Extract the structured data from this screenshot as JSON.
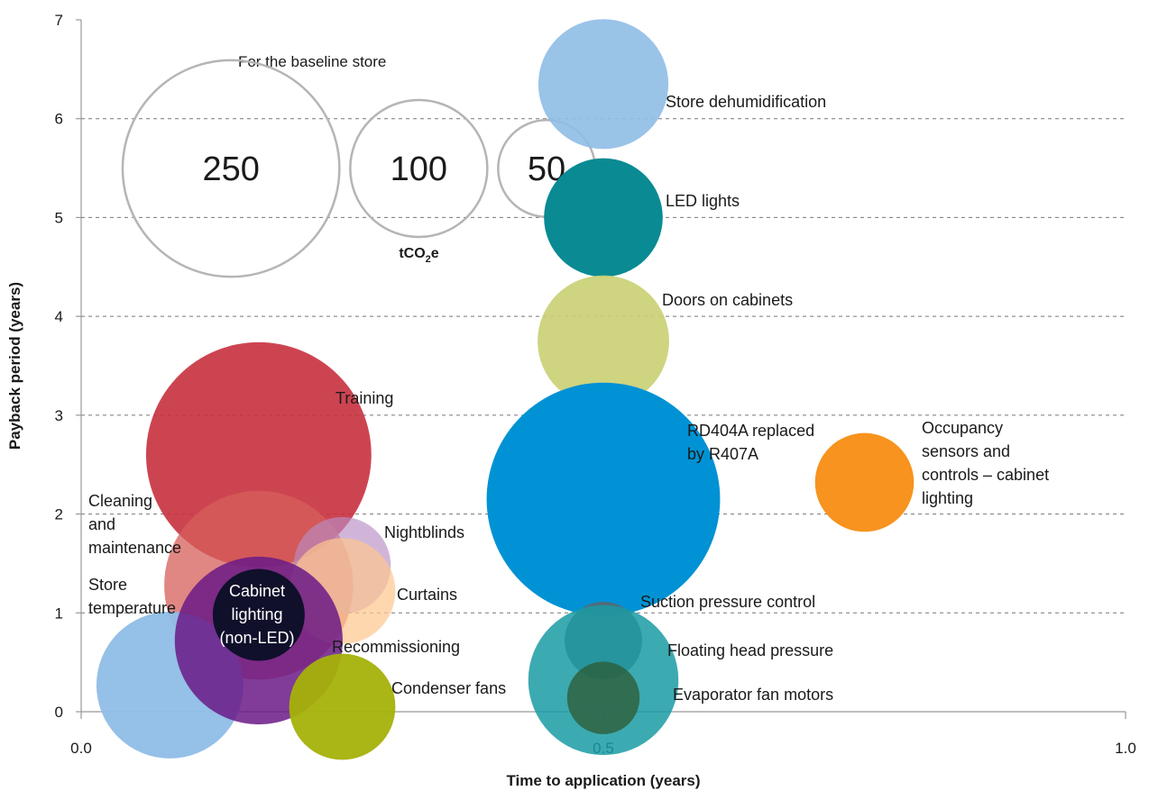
{
  "chart_data": {
    "type": "bubble",
    "xlabel": "Time to application (years)",
    "ylabel": "Payback period (years)",
    "xlim": [
      0,
      1
    ],
    "ylim": [
      0,
      7
    ],
    "x_ticks": [
      "0.0",
      "0.5",
      "1.0"
    ],
    "y_ticks": [
      "0",
      "1",
      "2",
      "3",
      "4",
      "5",
      "6",
      "7"
    ],
    "grid": "horizontal dashed",
    "size_key": {
      "caption": "For the baseline store",
      "unit": "tCO",
      "unit_sub": "2",
      "unit_suffix": "e",
      "sizes": [
        {
          "value": 250,
          "label": "250"
        },
        {
          "value": 100,
          "label": "100"
        },
        {
          "value": 50,
          "label": "50"
        }
      ]
    },
    "bubbles": [
      {
        "label_lines": [
          "Store dehumidification"
        ],
        "x": 0.5,
        "y": 6.35,
        "size": 90,
        "color": "#8fbde6",
        "opacity": 0.9
      },
      {
        "label_lines": [
          "LED lights"
        ],
        "x": 0.5,
        "y": 5.0,
        "size": 75,
        "color": "#0a8a92",
        "opacity": 1
      },
      {
        "label_lines": [
          "Doors on cabinets"
        ],
        "x": 0.5,
        "y": 3.75,
        "size": 92,
        "color": "#c9cf72",
        "opacity": 0.9
      },
      {
        "label_lines": [
          "RD404A replaced",
          "by R407A"
        ],
        "x": 0.5,
        "y": 2.15,
        "size": 290,
        "color": "#0092d4",
        "opacity": 1
      },
      {
        "label_lines": [
          "Occupancy",
          "sensors and",
          "controls – cabinet",
          "lighting"
        ],
        "x": 0.75,
        "y": 2.32,
        "size": 52,
        "color": "#f7931e",
        "opacity": 1
      },
      {
        "label_lines": [
          "Training"
        ],
        "x": 0.17,
        "y": 2.6,
        "size": 270,
        "color": "#c8303e",
        "opacity": 0.9
      },
      {
        "label_lines": [
          "Cleaning",
          "and",
          "maintenance"
        ],
        "x": 0.17,
        "y": 1.28,
        "size": 190,
        "color": "#d65f5a",
        "opacity": 0.75
      },
      {
        "label_lines": [
          "Nightblinds"
        ],
        "x": 0.25,
        "y": 1.48,
        "size": 50,
        "color": "#b88ec4",
        "opacity": 0.65
      },
      {
        "label_lines": [
          "Curtains"
        ],
        "x": 0.25,
        "y": 1.22,
        "size": 60,
        "color": "#fdc68d",
        "opacity": 0.7
      },
      {
        "label_lines": [
          "Store",
          "temperature"
        ],
        "x": 0.085,
        "y": 0.27,
        "size": 115,
        "color": "#8fbde6",
        "opacity": 0.95
      },
      {
        "label_lines": [
          "Recommissioning"
        ],
        "x": 0.17,
        "y": 0.72,
        "size": 150,
        "color": "#6a1a86",
        "opacity": 0.85
      },
      {
        "label_lines": [
          "Cabinet",
          "lighting",
          "(non-LED)"
        ],
        "x": 0.17,
        "y": 0.98,
        "size": 45,
        "color": "#0c1028",
        "opacity": 0.97,
        "label_inside": true
      },
      {
        "label_lines": [
          "Condenser fans"
        ],
        "x": 0.25,
        "y": 0.05,
        "size": 60,
        "color": "#a5b10a",
        "opacity": 0.95
      },
      {
        "label_lines": [
          "Suction pressure control"
        ],
        "x": 0.5,
        "y": 0.72,
        "size": 32,
        "color": "#5c6670",
        "opacity": 0.9
      },
      {
        "label_lines": [
          "Floating head pressure"
        ],
        "x": 0.5,
        "y": 0.32,
        "size": 120,
        "color": "#1a9ba3",
        "opacity": 0.85
      },
      {
        "label_lines": [
          "Evaporator fan motors"
        ],
        "x": 0.5,
        "y": 0.14,
        "size": 28,
        "color": "#2d5e3a",
        "opacity": 0.8
      }
    ]
  }
}
